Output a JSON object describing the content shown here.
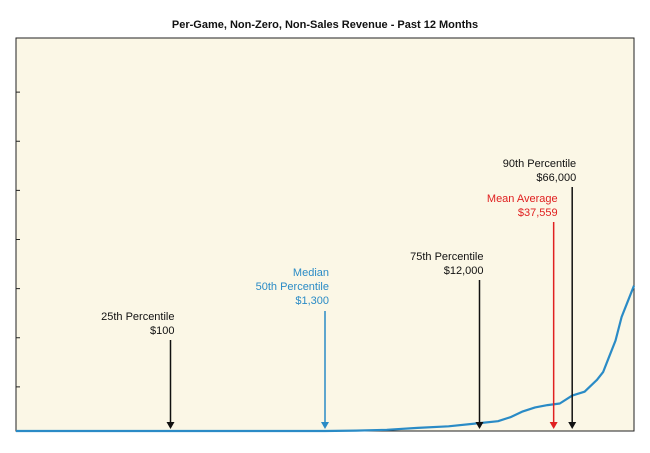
{
  "chart_data": {
    "type": "line",
    "title": "Per-Game, Non-Zero, Non-Sales Revenue - Past 12 Months",
    "xlabel": "",
    "ylabel": "",
    "grid": false,
    "legend": "none",
    "background_color": "#fbf7e6",
    "line_color": "#2a8bc6",
    "series": [
      {
        "x": [
          0,
          0.05,
          0.1,
          0.15,
          0.2,
          0.25,
          0.3,
          0.35,
          0.4,
          0.45,
          0.5,
          0.55,
          0.6,
          0.65,
          0.7,
          0.75,
          0.78,
          0.8,
          0.82,
          0.84,
          0.86,
          0.88,
          0.9,
          0.92,
          0.94,
          0.95,
          0.96,
          0.97,
          0.98,
          0.99,
          1.0
        ],
        "values": [
          0,
          0,
          0,
          0,
          0,
          0,
          0,
          0,
          0,
          0,
          0,
          0.001,
          0.003,
          0.008,
          0.012,
          0.02,
          0.025,
          0.035,
          0.05,
          0.06,
          0.066,
          0.07,
          0.09,
          0.1,
          0.13,
          0.15,
          0.19,
          0.23,
          0.29,
          0.33,
          0.37
        ]
      }
    ],
    "annotations": [
      {
        "lines": [
          "25th Percentile",
          "$100"
        ],
        "x": 0.25,
        "color": "#111111"
      },
      {
        "lines": [
          "Median",
          "50th Percentile",
          "$1,300"
        ],
        "x": 0.5,
        "color": "#2a8bc6"
      },
      {
        "lines": [
          "75th Percentile",
          "$12,000"
        ],
        "x": 0.75,
        "color": "#111111"
      },
      {
        "lines": [
          "Mean Average",
          "$37,559"
        ],
        "x": 0.87,
        "color": "#e02020"
      },
      {
        "lines": [
          "90th Percentile",
          "$66,000"
        ],
        "x": 0.9,
        "color": "#111111"
      }
    ]
  }
}
